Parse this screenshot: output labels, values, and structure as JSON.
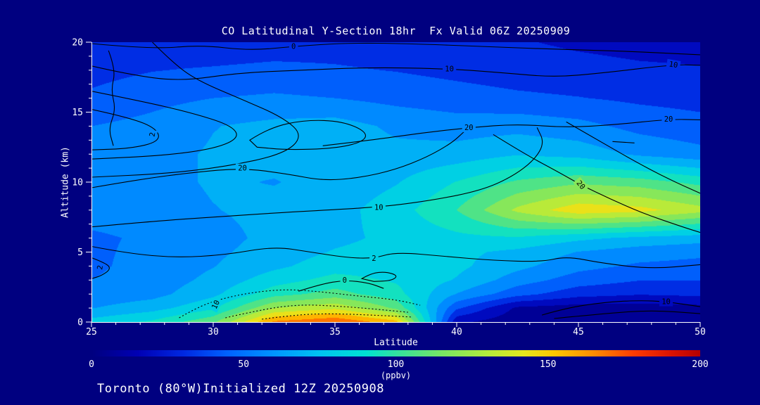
{
  "title": "CO Latitudinal Y-Section 18hr  Fx Valid 06Z 20250909",
  "caption": "Toronto (80°W)Initialized 12Z 20250908",
  "colors": {
    "background": "#000080",
    "text": "#FFFFFF",
    "axis": "#FFFFFF",
    "contour": "#000000"
  },
  "chart_data": {
    "type": "heatmap",
    "title": "CO Latitudinal Y-Section 18hr  Fx Valid 06Z 20250909",
    "xlabel": "Latitude",
    "ylabel": "Altitude (km)",
    "xlim": [
      25,
      50
    ],
    "ylim": [
      0,
      20
    ],
    "x_ticks": [
      25,
      30,
      35,
      40,
      45,
      50
    ],
    "y_ticks": [
      0,
      5,
      10,
      15,
      20
    ],
    "x_minor_step": 1,
    "y_minor_step": 1,
    "units": "ppbv",
    "lats": [
      25,
      27.5,
      30,
      32.5,
      35,
      37.5,
      40,
      42.5,
      45,
      47.5,
      50
    ],
    "alts": [
      0,
      1,
      2,
      3,
      4,
      5,
      6,
      8,
      10,
      12,
      14,
      16,
      18,
      20
    ],
    "values_ppbv": [
      [
        80,
        90,
        110,
        165,
        175,
        155,
        15,
        4,
        3,
        3,
        4
      ],
      [
        62,
        70,
        85,
        125,
        135,
        110,
        40,
        10,
        6,
        6,
        8
      ],
      [
        54,
        58,
        72,
        95,
        105,
        92,
        62,
        42,
        30,
        26,
        28
      ],
      [
        50,
        55,
        66,
        82,
        92,
        86,
        74,
        56,
        44,
        38,
        38
      ],
      [
        48,
        54,
        62,
        72,
        82,
        82,
        78,
        66,
        54,
        48,
        46
      ],
      [
        48,
        53,
        60,
        68,
        76,
        80,
        78,
        72,
        62,
        56,
        53
      ],
      [
        48,
        52,
        58,
        66,
        72,
        78,
        84,
        86,
        78,
        72,
        68
      ],
      [
        55,
        56,
        62,
        66,
        70,
        82,
        100,
        128,
        146,
        142,
        130
      ],
      [
        56,
        58,
        64,
        62,
        66,
        74,
        88,
        102,
        110,
        106,
        96
      ],
      [
        60,
        58,
        64,
        66,
        70,
        66,
        68,
        74,
        70,
        60,
        54
      ],
      [
        50,
        54,
        62,
        66,
        68,
        60,
        56,
        58,
        54,
        46,
        42
      ],
      [
        40,
        46,
        50,
        52,
        50,
        46,
        43,
        40,
        38,
        35,
        33
      ],
      [
        33,
        37,
        39,
        41,
        39,
        37,
        34,
        31,
        29,
        27,
        26
      ],
      [
        28,
        29,
        28,
        30,
        32,
        30,
        28,
        26,
        23,
        21,
        20
      ]
    ],
    "colorbar": {
      "min": 0,
      "max": 200,
      "ticks": [
        0,
        50,
        100,
        150,
        200
      ],
      "label": "(ppbv)",
      "stops": [
        [
          0,
          "#000080"
        ],
        [
          15,
          "#0000B4"
        ],
        [
          30,
          "#0028E1"
        ],
        [
          45,
          "#0064FF"
        ],
        [
          60,
          "#0096FF"
        ],
        [
          75,
          "#00C3F0"
        ],
        [
          90,
          "#00E1D2"
        ],
        [
          100,
          "#32E1A0"
        ],
        [
          115,
          "#78E664"
        ],
        [
          130,
          "#B4EB3C"
        ],
        [
          142,
          "#E6E61E"
        ],
        [
          152,
          "#FFC800"
        ],
        [
          165,
          "#FF8C00"
        ],
        [
          178,
          "#FF3C00"
        ],
        [
          190,
          "#DC1400"
        ],
        [
          200,
          "#B40000"
        ]
      ]
    },
    "contours": [
      {
        "level": "0",
        "points": [
          [
            25,
            19.9
          ],
          [
            27.5,
            19.5
          ],
          [
            29.5,
            19.8
          ],
          [
            31.5,
            19.4
          ],
          [
            33.3,
            19.7
          ],
          [
            35.5,
            19.95
          ],
          [
            38,
            19.9
          ],
          [
            41,
            19.7
          ],
          [
            44,
            19.5
          ],
          [
            47,
            19.35
          ],
          [
            50,
            19.1
          ]
        ],
        "labels": [
          [
            33.3,
            19.7,
            0
          ]
        ]
      },
      {
        "level": "10",
        "points": [
          [
            25,
            18.3
          ],
          [
            26.5,
            17.7
          ],
          [
            28.6,
            17.2
          ],
          [
            31,
            17.8
          ],
          [
            33.5,
            18.0
          ],
          [
            36.5,
            18.2
          ],
          [
            39.7,
            18.1
          ],
          [
            42,
            17.8
          ],
          [
            44,
            17.5
          ],
          [
            46,
            17.8
          ],
          [
            48.9,
            18.4
          ],
          [
            50,
            18.35
          ]
        ],
        "labels": [
          [
            39.7,
            18.1,
            0
          ],
          [
            48.9,
            18.4,
            10
          ]
        ]
      },
      {
        "level": "20",
        "points": [
          [
            34.5,
            12.6
          ],
          [
            36.5,
            13.0
          ],
          [
            38.5,
            13.5
          ],
          [
            40.5,
            13.9
          ],
          [
            42.5,
            14.15
          ],
          [
            44.5,
            13.9
          ],
          [
            46.5,
            14.1
          ],
          [
            48.7,
            14.5
          ],
          [
            50,
            14.45
          ]
        ],
        "labels": [
          [
            40.5,
            13.9,
            0
          ],
          [
            48.7,
            14.5,
            0
          ]
        ]
      },
      {
        "level": "2",
        "points": [
          [
            27.5,
            20
          ],
          [
            28.3,
            18.6
          ],
          [
            29.3,
            17.3
          ],
          [
            31.2,
            15.9
          ],
          [
            32.9,
            14.6
          ],
          [
            33.7,
            13.3
          ],
          [
            32.9,
            12.0
          ],
          [
            30.5,
            11.1
          ],
          [
            28,
            10.6
          ],
          [
            25,
            10.35
          ]
        ],
        "labels": []
      },
      {
        "level": "2",
        "points": [
          [
            25,
            16.5
          ],
          [
            27,
            15.8
          ],
          [
            29,
            15.0
          ],
          [
            30.7,
            14.1
          ],
          [
            31.1,
            13.2
          ],
          [
            30.1,
            12.4
          ],
          [
            28,
            11.9
          ],
          [
            25,
            11.65
          ]
        ],
        "labels": []
      },
      {
        "level": "2",
        "points": [
          [
            25,
            15.2
          ],
          [
            26.6,
            14.6
          ],
          [
            27.7,
            13.8
          ],
          [
            27.8,
            12.9
          ],
          [
            26.6,
            12.4
          ],
          [
            25,
            12.3
          ]
        ],
        "labels": [
          [
            27.5,
            13.4,
            -80
          ]
        ]
      },
      {
        "level": "20",
        "closed": true,
        "points": [
          [
            31.5,
            13.0
          ],
          [
            32.3,
            13.9
          ],
          [
            33.8,
            14.45
          ],
          [
            35.3,
            14.35
          ],
          [
            36.3,
            13.6
          ],
          [
            36.2,
            12.9
          ],
          [
            35.0,
            12.4
          ],
          [
            33.0,
            12.3
          ],
          [
            31.8,
            12.5
          ]
        ],
        "labels": []
      },
      {
        "level": "20",
        "points": [
          [
            25,
            9.6
          ],
          [
            27,
            10.2
          ],
          [
            29.2,
            10.7
          ],
          [
            31.2,
            11.0
          ],
          [
            33,
            10.6
          ],
          [
            34.5,
            10.1
          ],
          [
            36,
            10.3
          ],
          [
            37.5,
            10.9
          ],
          [
            38.8,
            11.8
          ],
          [
            39.8,
            12.8
          ],
          [
            40.3,
            13.6
          ]
        ],
        "labels": [
          [
            31.2,
            11.0,
            0
          ]
        ]
      },
      {
        "level": "10",
        "points": [
          [
            25,
            6.8
          ],
          [
            27.5,
            7.2
          ],
          [
            30,
            7.5
          ],
          [
            33,
            7.85
          ],
          [
            36.8,
            8.2
          ],
          [
            39,
            8.7
          ],
          [
            41,
            9.4
          ],
          [
            42.3,
            10.4
          ],
          [
            43.2,
            11.6
          ],
          [
            43.6,
            12.8
          ],
          [
            43.3,
            13.9
          ]
        ],
        "labels": [
          [
            36.8,
            8.2,
            0
          ]
        ]
      },
      {
        "level": "20",
        "points": [
          [
            41.5,
            13.4
          ],
          [
            42.8,
            12.0
          ],
          [
            44.2,
            10.7
          ],
          [
            45.1,
            9.8
          ],
          [
            46.3,
            8.8
          ],
          [
            47.6,
            7.8
          ],
          [
            49.1,
            6.9
          ],
          [
            50,
            6.4
          ]
        ],
        "labels": [
          [
            45.1,
            9.8,
            50
          ]
        ]
      },
      {
        "level": "",
        "points": [
          [
            44.5,
            14.3
          ],
          [
            45.8,
            13.0
          ],
          [
            47.2,
            11.6
          ],
          [
            48.6,
            10.3
          ],
          [
            50,
            9.2
          ]
        ],
        "labels": []
      },
      {
        "level": "2",
        "points": [
          [
            25,
            5.4
          ],
          [
            26.5,
            4.9
          ],
          [
            28.5,
            4.6
          ],
          [
            30.5,
            4.8
          ],
          [
            32.5,
            5.4
          ],
          [
            34,
            5.0
          ],
          [
            35.5,
            4.6
          ],
          [
            36.6,
            4.55
          ],
          [
            37.5,
            5.0
          ],
          [
            39.5,
            4.7
          ],
          [
            41.5,
            4.4
          ],
          [
            43.5,
            4.3
          ],
          [
            44.5,
            4.7
          ],
          [
            46,
            4.2
          ],
          [
            48,
            3.8
          ],
          [
            50,
            4.1
          ]
        ],
        "labels": [
          [
            36.6,
            4.55,
            0
          ]
        ]
      },
      {
        "level": "0",
        "points": [
          [
            33.5,
            2.2
          ],
          [
            34.4,
            2.7
          ],
          [
            35.4,
            3.0
          ],
          [
            36.4,
            2.8
          ],
          [
            37,
            2.4
          ]
        ],
        "labels": [
          [
            35.4,
            3.0,
            0
          ]
        ]
      },
      {
        "level": "0",
        "closed": true,
        "points": [
          [
            36.1,
            3.1
          ],
          [
            36.5,
            3.5
          ],
          [
            37.1,
            3.6
          ],
          [
            37.6,
            3.3
          ],
          [
            37.3,
            2.95
          ],
          [
            36.6,
            2.9
          ]
        ],
        "labels": []
      },
      {
        "level": "2",
        "points": [
          [
            25,
            4.6
          ],
          [
            25.6,
            4.2
          ],
          [
            25.8,
            3.8
          ],
          [
            25.4,
            3.3
          ],
          [
            25,
            3.1
          ]
        ],
        "labels": [
          [
            25.35,
            3.9,
            -80
          ]
        ]
      },
      {
        "level": "10",
        "points": [
          [
            43.5,
            0.5
          ],
          [
            44.5,
            1.0
          ],
          [
            46,
            1.4
          ],
          [
            47.5,
            1.55
          ],
          [
            48.6,
            1.45
          ],
          [
            50,
            1.1
          ]
        ],
        "labels": [
          [
            48.6,
            1.45,
            0
          ]
        ]
      },
      {
        "level": "",
        "points": [
          [
            44,
            0.25
          ],
          [
            46,
            0.6
          ],
          [
            48,
            0.85
          ],
          [
            50,
            0.6
          ]
        ],
        "labels": []
      },
      {
        "level": "10",
        "dashed": true,
        "points": [
          [
            28.6,
            0.3
          ],
          [
            29.3,
            1.0
          ],
          [
            30.2,
            1.6
          ],
          [
            31.5,
            2.1
          ],
          [
            33,
            2.35
          ],
          [
            34.5,
            2.15
          ],
          [
            36,
            1.85
          ],
          [
            37.5,
            1.6
          ],
          [
            38.5,
            1.2
          ]
        ],
        "labels": [
          [
            30.1,
            1.25,
            -65
          ]
        ]
      },
      {
        "level": "",
        "dashed": true,
        "points": [
          [
            30.5,
            0.3
          ],
          [
            32,
            0.9
          ],
          [
            33.5,
            1.25
          ],
          [
            35,
            1.15
          ],
          [
            36.5,
            0.95
          ],
          [
            38,
            0.7
          ]
        ],
        "labels": []
      },
      {
        "level": "",
        "dashed": true,
        "points": [
          [
            32,
            0.2
          ],
          [
            33.5,
            0.55
          ],
          [
            35,
            0.6
          ],
          [
            36.5,
            0.5
          ],
          [
            38.2,
            0.35
          ]
        ],
        "labels": []
      },
      {
        "level": "",
        "points": [
          [
            25.7,
            19.4
          ],
          [
            26.0,
            18.0
          ],
          [
            25.8,
            16.6
          ],
          [
            26.0,
            15.2
          ],
          [
            25.7,
            13.8
          ],
          [
            25.9,
            12.6
          ]
        ],
        "labels": []
      },
      {
        "level": "",
        "points": [
          [
            46.4,
            12.9
          ],
          [
            47.3,
            12.8
          ]
        ],
        "labels": []
      }
    ]
  }
}
